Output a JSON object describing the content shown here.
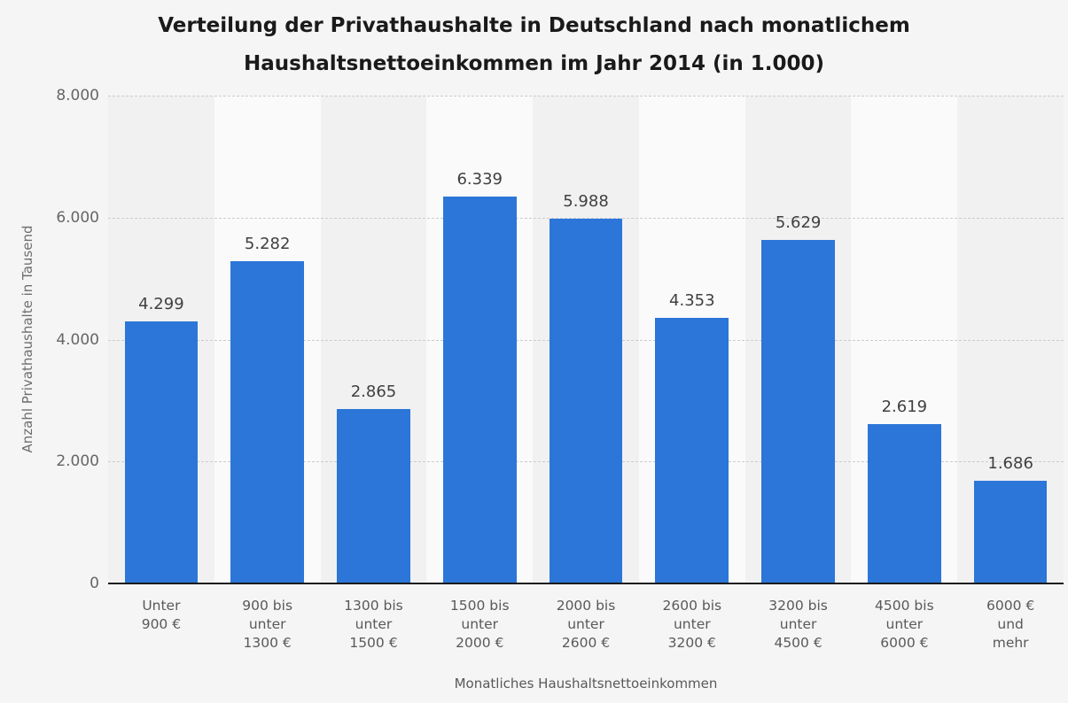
{
  "chart_data": {
    "type": "bar",
    "title": "Verteilung der Privathaushalte in Deutschland nach monatlichem Haushaltsnettoeinkommen im Jahr 2014 (in 1.000)",
    "xlabel": "Monatliches Haushaltsnettoeinkommen",
    "ylabel": "Anzahl Privathaushalte in Tausend",
    "categories": [
      "Unter\n900 €",
      "900 bis\nunter\n1300 €",
      "1300 bis\nunter\n1500 €",
      "1500 bis\nunter\n2000 €",
      "2000 bis\nunter\n2600 €",
      "2600 bis\nunter\n3200 €",
      "3200 bis\nunter\n4500 €",
      "4500 bis\nunter\n6000 €",
      "6000 €\nund\nmehr"
    ],
    "values": [
      4299,
      5282,
      2865,
      6339,
      5988,
      4353,
      5629,
      2619,
      1686
    ],
    "value_labels": [
      "4.299",
      "5.282",
      "2.865",
      "6.339",
      "5.988",
      "4.353",
      "5.629",
      "2.619",
      "1.686"
    ],
    "ylim": [
      0,
      8000
    ],
    "yticks": [
      {
        "value": 8000,
        "label": "8.000"
      },
      {
        "value": 6000,
        "label": "6.000"
      },
      {
        "value": 4000,
        "label": "4.000"
      },
      {
        "value": 2000,
        "label": "2.000"
      },
      {
        "value": 0,
        "label": "0"
      }
    ],
    "grid": {
      "horizontal": true,
      "style": "dashed"
    },
    "legend": "none",
    "colors": {
      "bar": "#2b76d8",
      "background": "#f5f5f5",
      "band_odd": "#f1f1f1",
      "band_even": "#fafafa",
      "gridline": "#cccccc",
      "axis_line": "#1a1a1a",
      "title_text": "#1a1a1a",
      "value_label_text": "#404040",
      "tick_text": "#666666",
      "axis_title_text": "#6e6e6e"
    }
  }
}
